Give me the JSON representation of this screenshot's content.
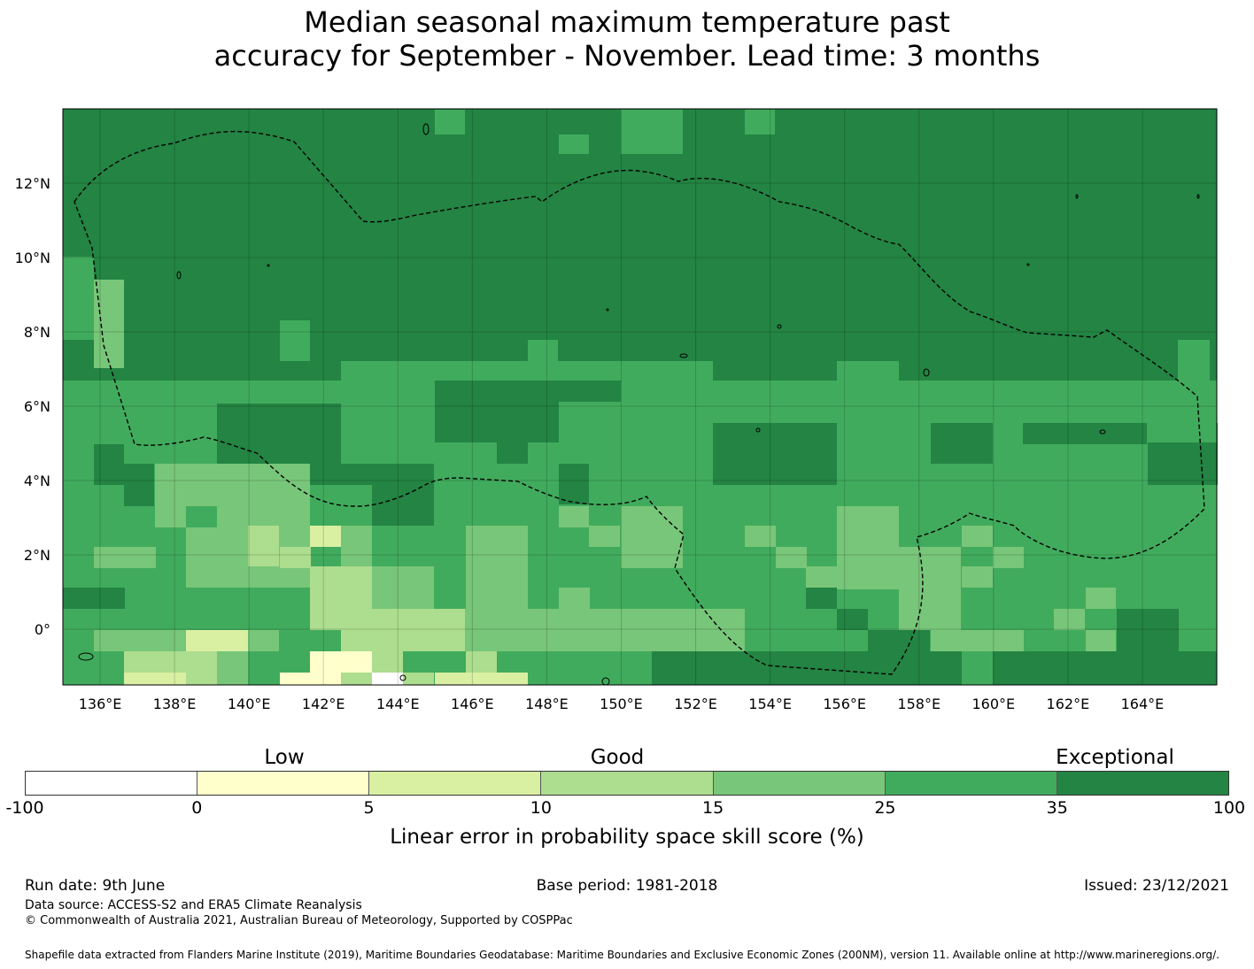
{
  "title": {
    "line1": "Median seasonal maximum temperature past",
    "line2": "accuracy for September - November. Lead time: 3 months"
  },
  "map": {
    "lon_range": [
      135,
      166
    ],
    "lat_range": [
      -1.5,
      14
    ],
    "lon_ticks": [
      "136°E",
      "138°E",
      "140°E",
      "142°E",
      "144°E",
      "146°E",
      "148°E",
      "150°E",
      "152°E",
      "154°E",
      "156°E",
      "158°E",
      "160°E",
      "162°E",
      "164°E"
    ],
    "lat_ticks": [
      "12°N",
      "10°N",
      "8°N",
      "6°N",
      "4°N",
      "2°N",
      "0°"
    ],
    "boundary_style": "dashed",
    "gridlines": true
  },
  "legend": {
    "categories": [
      "Low",
      "Good",
      "Exceptional"
    ],
    "ticks": [
      "-100",
      "0",
      "5",
      "10",
      "15",
      "25",
      "35",
      "100"
    ],
    "colors": [
      "#ffffff",
      "#ffffcc",
      "#d9f0a3",
      "#addd8e",
      "#78c679",
      "#41ab5d",
      "#238443"
    ],
    "label": "Linear error in probability space skill score (%)"
  },
  "footer": {
    "run_date": "Run date: 9th June",
    "base_period": "Base period: 1981-2018",
    "issued": "Issued: 23/12/2021",
    "data_source": "Data source: ACCESS-S2 and ERA5 Climate Reanalysis",
    "copyright": "© Commonwealth of Australia 2021, Australian Bureau of Meteorology, Supported by COSPPac",
    "shapefile": "Shapefile data extracted from Flanders Marine Institute (2019), Maritime Boundaries Geodatabase: Maritime Boundaries and Exclusive Economic Zones (200NM), version 11. Available online at http://www.marineregions.org/."
  }
}
